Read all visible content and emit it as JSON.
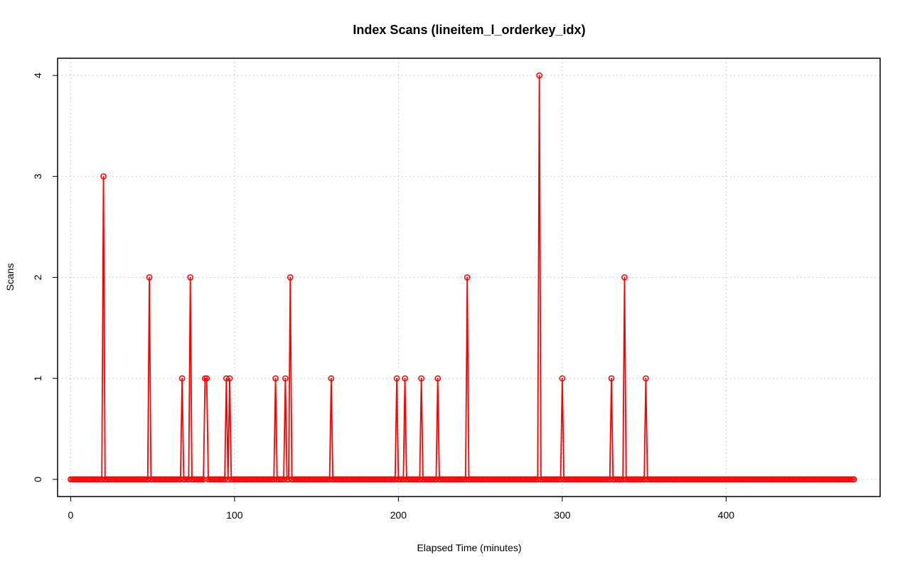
{
  "chart_data": {
    "type": "line",
    "title": "Index Scans (lineitem_l_orderkey_idx)",
    "xlabel": "Elapsed Time (minutes)",
    "ylabel": "Scans",
    "xlim": [
      -8,
      494
    ],
    "ylim": [
      -0.17,
      4.17
    ],
    "xticks": [
      0,
      100,
      200,
      300,
      400
    ],
    "yticks": [
      0,
      1,
      2,
      3,
      4
    ],
    "grid": true,
    "legend": "none",
    "series_color": "#ff0000",
    "x_start": 0,
    "x_end": 478,
    "spikes": [
      {
        "x": 20,
        "y": 3
      },
      {
        "x": 48,
        "y": 2
      },
      {
        "x": 68,
        "y": 1
      },
      {
        "x": 73,
        "y": 2
      },
      {
        "x": 82,
        "y": 1
      },
      {
        "x": 83,
        "y": 1
      },
      {
        "x": 95,
        "y": 1
      },
      {
        "x": 97,
        "y": 1
      },
      {
        "x": 125,
        "y": 1
      },
      {
        "x": 131,
        "y": 1
      },
      {
        "x": 134,
        "y": 2
      },
      {
        "x": 159,
        "y": 1
      },
      {
        "x": 199,
        "y": 1
      },
      {
        "x": 204,
        "y": 1
      },
      {
        "x": 214,
        "y": 1
      },
      {
        "x": 224,
        "y": 1
      },
      {
        "x": 242,
        "y": 2
      },
      {
        "x": 286,
        "y": 4
      },
      {
        "x": 300,
        "y": 1
      },
      {
        "x": 330,
        "y": 1
      },
      {
        "x": 338,
        "y": 2
      },
      {
        "x": 351,
        "y": 1
      }
    ]
  }
}
